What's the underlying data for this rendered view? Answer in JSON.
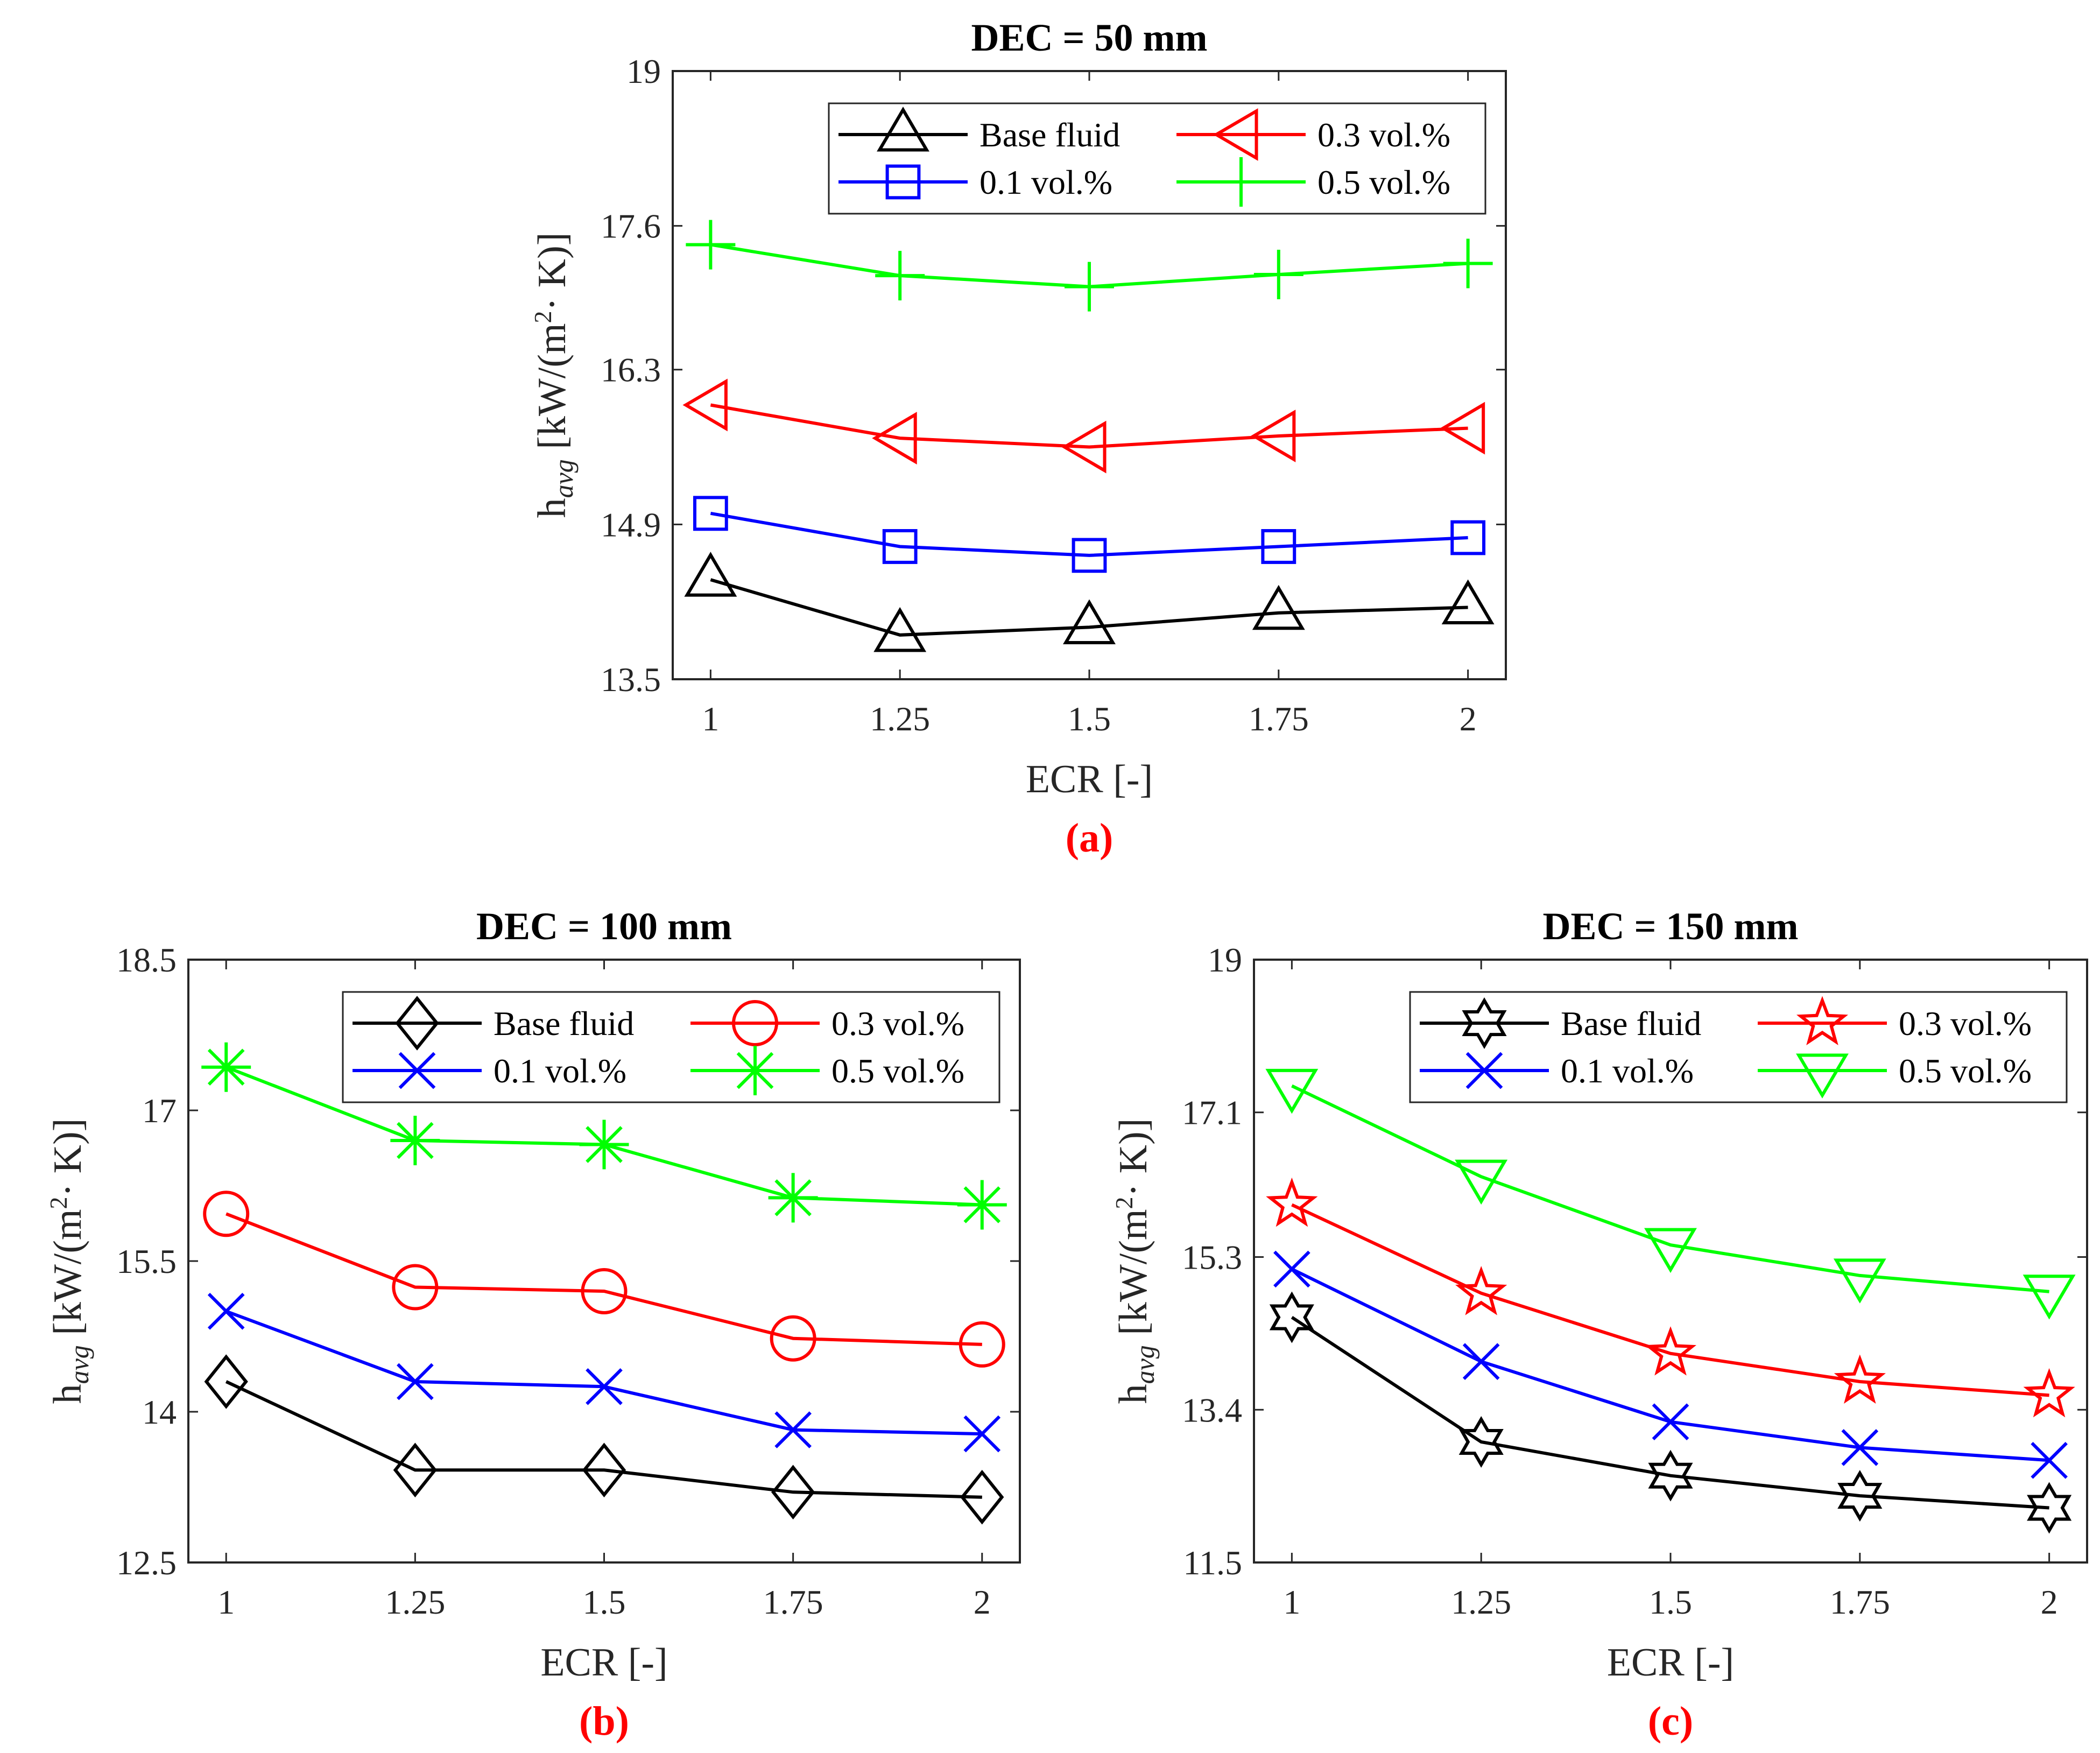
{
  "chart_data": [
    {
      "type": "line",
      "title": "DEC = 50 mm",
      "panel_label": "(a)",
      "xlabel": "ECR [-]",
      "ylabel": {
        "base": "h",
        "sub": "avg",
        "unit_pre": " [kW/(m",
        "unit_sup": "2",
        "unit_post": "· K)]"
      },
      "x": [
        1,
        1.25,
        1.5,
        1.75,
        2
      ],
      "x_tick_labels": [
        "1",
        "1.25",
        "1.5",
        "1.75",
        "2"
      ],
      "y_ticks": [
        13.5,
        14.9,
        16.3,
        17.6,
        19
      ],
      "y_tick_labels": [
        "13.5",
        "14.9",
        "16.3",
        "17.6",
        "19"
      ],
      "ylim": [
        13.5,
        19
      ],
      "xlim": [
        0.95,
        2.05
      ],
      "legend_placement": "top-right",
      "series": [
        {
          "name": "Base fluid",
          "color": "#000000",
          "marker": "triangle-up",
          "values": [
            14.4,
            13.9,
            13.97,
            14.1,
            14.15
          ]
        },
        {
          "name": "0.1 vol.%",
          "color": "#0000ff",
          "marker": "square",
          "values": [
            15.0,
            14.7,
            14.62,
            14.7,
            14.78
          ]
        },
        {
          "name": "0.3 vol.%",
          "color": "#ff0000",
          "marker": "triangle-left",
          "values": [
            15.98,
            15.68,
            15.6,
            15.7,
            15.77
          ]
        },
        {
          "name": "0.5 vol.%",
          "color": "#00ff00",
          "marker": "plus",
          "values": [
            17.43,
            17.15,
            17.05,
            17.16,
            17.26
          ]
        }
      ]
    },
    {
      "type": "line",
      "title": "DEC = 100 mm",
      "panel_label": "(b)",
      "xlabel": "ECR [-]",
      "ylabel": {
        "base": "h",
        "sub": "avg",
        "unit_pre": " [kW/(m",
        "unit_sup": "2",
        "unit_post": "· K)]"
      },
      "x": [
        1,
        1.25,
        1.5,
        1.75,
        2
      ],
      "x_tick_labels": [
        "1",
        "1.25",
        "1.5",
        "1.75",
        "2"
      ],
      "y_ticks": [
        12.5,
        14,
        15.5,
        17,
        18.5
      ],
      "y_tick_labels": [
        "12.5",
        "14",
        "15.5",
        "17",
        "18.5"
      ],
      "ylim": [
        12.5,
        18.5
      ],
      "xlim": [
        0.95,
        2.05
      ],
      "legend_placement": "top-right",
      "series": [
        {
          "name": "Base fluid",
          "color": "#000000",
          "marker": "diamond",
          "values": [
            14.3,
            13.42,
            13.42,
            13.2,
            13.15
          ]
        },
        {
          "name": "0.1 vol.%",
          "color": "#0000ff",
          "marker": "x",
          "values": [
            15.0,
            14.3,
            14.25,
            13.82,
            13.78
          ]
        },
        {
          "name": "0.3 vol.%",
          "color": "#ff0000",
          "marker": "circle",
          "values": [
            15.97,
            15.24,
            15.2,
            14.73,
            14.67
          ]
        },
        {
          "name": "0.5 vol.%",
          "color": "#00ff00",
          "marker": "asterisk",
          "values": [
            17.43,
            16.7,
            16.66,
            16.13,
            16.06
          ]
        }
      ]
    },
    {
      "type": "line",
      "title": "DEC = 150 mm",
      "panel_label": "(c)",
      "xlabel": "ECR [-]",
      "ylabel": {
        "base": "h",
        "sub": "avg",
        "unit_pre": " [kW/(m",
        "unit_sup": "2",
        "unit_post": "· K)]"
      },
      "x": [
        1,
        1.25,
        1.5,
        1.75,
        2
      ],
      "x_tick_labels": [
        "1",
        "1.25",
        "1.5",
        "1.75",
        "2"
      ],
      "y_ticks": [
        11.5,
        13.4,
        15.3,
        17.1,
        19
      ],
      "y_tick_labels": [
        "11.5",
        "13.4",
        "15.3",
        "17.1",
        "19"
      ],
      "ylim": [
        11.5,
        19
      ],
      "xlim": [
        0.95,
        2.05
      ],
      "legend_placement": "top-right",
      "series": [
        {
          "name": "Base fluid",
          "color": "#000000",
          "marker": "hexagram",
          "values": [
            14.55,
            13.0,
            12.58,
            12.33,
            12.18
          ]
        },
        {
          "name": "0.1 vol.%",
          "color": "#0000ff",
          "marker": "x",
          "values": [
            15.15,
            14.0,
            13.25,
            12.93,
            12.77
          ]
        },
        {
          "name": "0.3 vol.%",
          "color": "#ff0000",
          "marker": "pentagram",
          "values": [
            15.95,
            14.85,
            14.1,
            13.75,
            13.58
          ]
        },
        {
          "name": "0.5 vol.%",
          "color": "#00ff00",
          "marker": "triangle-down",
          "values": [
            17.43,
            16.3,
            15.45,
            15.07,
            14.87
          ]
        }
      ]
    }
  ]
}
